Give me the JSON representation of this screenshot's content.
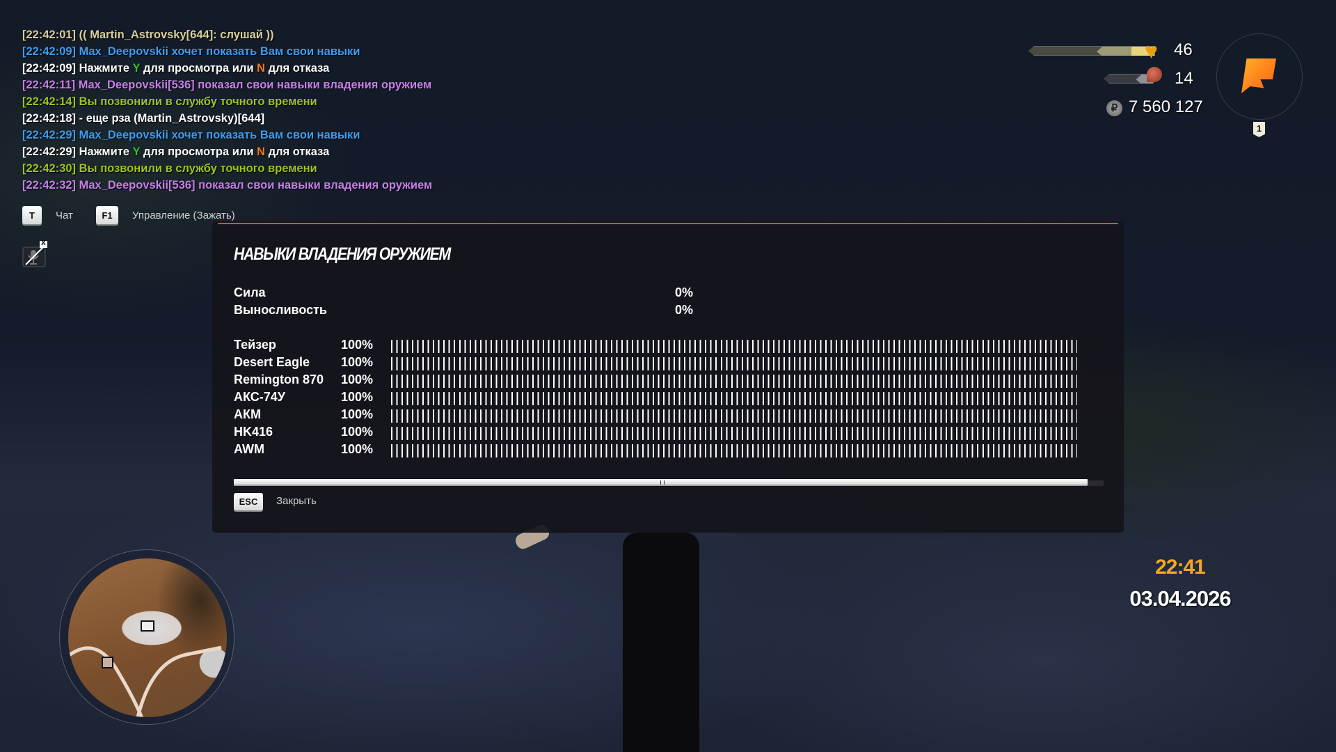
{
  "chat": {
    "lines": [
      {
        "segments": [
          {
            "text": "[22:42:01] (( Martin_Astrovsky[644]: слушай ))",
            "color": "khaki"
          }
        ]
      },
      {
        "segments": [
          {
            "text": "[22:42:09] Max_Deepovskii хочет показать Вам свои навыки",
            "color": "blue"
          }
        ]
      },
      {
        "segments": [
          {
            "text": "[22:42:09] Нажмите ",
            "color": "white"
          },
          {
            "text": "Y",
            "color": "y"
          },
          {
            "text": " для просмотра или ",
            "color": "white"
          },
          {
            "text": "N",
            "color": "n"
          },
          {
            "text": " для отказа",
            "color": "white"
          }
        ]
      },
      {
        "segments": [
          {
            "text": "[22:42:11] Max_Deepovskii[536] показал свои навыки владения оружием",
            "color": "purple"
          }
        ]
      },
      {
        "segments": [
          {
            "text": "[22:42:14] Вы позвонили в службу точного времени",
            "color": "green"
          }
        ]
      },
      {
        "segments": [
          {
            "text": "[22:42:18] - еще рза (Martin_Astrovsky)[644]",
            "color": "white"
          }
        ]
      },
      {
        "segments": [
          {
            "text": "[22:42:29] Max_Deepovskii хочет показать Вам свои навыки",
            "color": "blue"
          }
        ]
      },
      {
        "segments": [
          {
            "text": "[22:42:29] Нажмите ",
            "color": "white"
          },
          {
            "text": "Y",
            "color": "y"
          },
          {
            "text": " для просмотра или ",
            "color": "white"
          },
          {
            "text": "N",
            "color": "n"
          },
          {
            "text": " для отказа",
            "color": "white"
          }
        ]
      },
      {
        "segments": [
          {
            "text": "[22:42:30] Вы позвонили в службу точного времени",
            "color": "green"
          }
        ]
      },
      {
        "segments": [
          {
            "text": "[22:42:32] Max_Deepovskii[536] показал свои навыки владения оружием",
            "color": "purple"
          }
        ]
      }
    ]
  },
  "hints": {
    "chat_key": "T",
    "chat_label": "Чат",
    "control_key": "F1",
    "control_label": "Управление (Зажать)"
  },
  "mic": {
    "icon": "mic-muted-icon",
    "badge": "X"
  },
  "panel": {
    "title": "НАВЫКИ ВЛАДЕНИЯ ОРУЖИЕМ",
    "stats": [
      {
        "label": "Сила",
        "value": "0%"
      },
      {
        "label": "Выносливость",
        "value": "0%"
      }
    ],
    "weapons": [
      {
        "name": "Тейзер",
        "value": "100%",
        "level": 100
      },
      {
        "name": "Desert Eagle",
        "value": "100%",
        "level": 100
      },
      {
        "name": "Remington 870",
        "value": "100%",
        "level": 100
      },
      {
        "name": "АКС-74У",
        "value": "100%",
        "level": 100
      },
      {
        "name": "АКМ",
        "value": "100%",
        "level": 100
      },
      {
        "name": "HK416",
        "value": "100%",
        "level": 100
      },
      {
        "name": "AWM",
        "value": "100%",
        "level": 100
      }
    ],
    "esc_key": "ESC",
    "close_label": "Закрыть",
    "accent": "#e24a3b"
  },
  "hud": {
    "health": "46",
    "health_level": 46,
    "hunger": "14",
    "hunger_level": 14,
    "money": "7 560 127",
    "server_badge": "1",
    "logo_color": "#ff8a1c"
  },
  "clock": {
    "time": "22:41",
    "date": "03.04.2026",
    "time_color": "#f5a623"
  }
}
